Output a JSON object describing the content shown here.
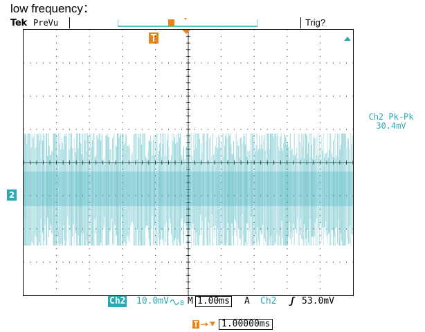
{
  "caption": "low frequency：",
  "header": {
    "brand": "Tek",
    "mode": "PreVu",
    "trigger_status": "Trig?"
  },
  "waveform": {
    "channel_marker": "2",
    "color": "#2aa9b4"
  },
  "measurement": {
    "label": "Ch2 Pk-Pk",
    "value": "30.4mV"
  },
  "status_bar": {
    "channel": "Ch2",
    "scale": "10.0mV",
    "coupling_icon": "bandwidth-limit-icon",
    "timebase_label": "M",
    "timebase": "1.00ms",
    "acquire_mode": "A",
    "trigger_source": "Ch2",
    "slope_icon": "rising-slope-icon",
    "trigger_level": "53.0mV"
  },
  "trigger_position": {
    "value": "1.00000ms",
    "icon": "trigger-position-icon"
  },
  "colors": {
    "accent": "#2aa9b4",
    "trigger_marker": "#e8861a",
    "grid": "#000000"
  }
}
